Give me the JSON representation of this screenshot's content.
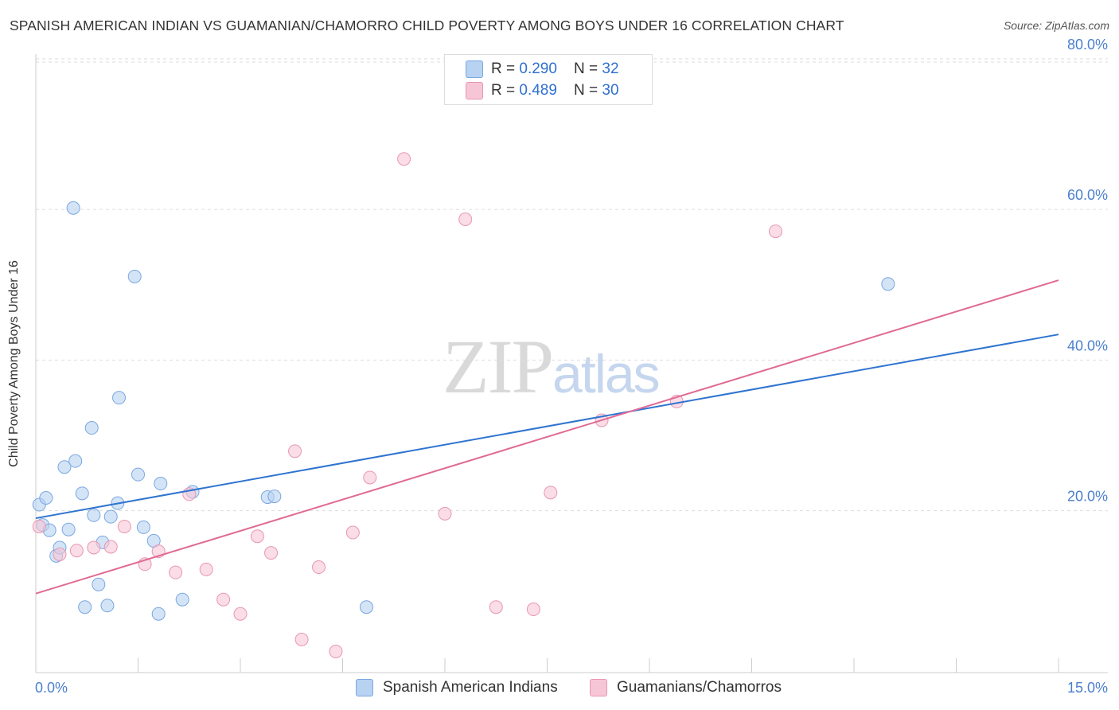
{
  "title": "SPANISH AMERICAN INDIAN VS GUAMANIAN/CHAMORRO CHILD POVERTY AMONG BOYS UNDER 16 CORRELATION CHART",
  "source": "Source: ZipAtlas.com",
  "watermark": {
    "zip": "ZIP",
    "atlas": "atlas"
  },
  "legend": {
    "series1": {
      "r_label": "R = ",
      "r_value": "0.290",
      "n_label": "N = ",
      "n_value": "32"
    },
    "series2": {
      "r_label": "R = ",
      "r_value": "0.489",
      "n_label": "N = ",
      "n_value": "30"
    }
  },
  "chart_data": {
    "type": "scatter",
    "title": "SPANISH AMERICAN INDIAN VS GUAMANIAN/CHAMORRO CHILD POVERTY AMONG BOYS UNDER 16 CORRELATION CHART",
    "xlabel": "",
    "ylabel": "Child Poverty Among Boys Under 16",
    "xlim": [
      0,
      15
    ],
    "ylim": [
      -1.5,
      82
    ],
    "x_tick_labels": [
      "0.0%",
      "15.0%"
    ],
    "y_ticks": [
      20,
      40,
      60,
      80
    ],
    "y_tick_labels": [
      "20.0%",
      "40.0%",
      "60.0%",
      "80.0%"
    ],
    "grid": true,
    "colors": {
      "series1_fill": "#b8d2f2",
      "series1_stroke": "#7aa7e0",
      "series1_line": "#2f74d0",
      "series2_fill": "#f7c6d6",
      "series2_stroke": "#e897b2",
      "series2_line": "#e06a94",
      "tick_label": "#4a7fd0",
      "grid": "#dddddd",
      "axis": "#cccccc"
    },
    "series": [
      {
        "name": "Spanish American Indians",
        "r": 0.29,
        "n": 32,
        "trend": {
          "x": [
            0,
            15
          ],
          "y": [
            19.0,
            43.4
          ]
        },
        "points": [
          {
            "x": 0.05,
            "y": 20.8
          },
          {
            "x": 0.15,
            "y": 21.7
          },
          {
            "x": 0.1,
            "y": 18.1
          },
          {
            "x": 0.2,
            "y": 17.4
          },
          {
            "x": 0.3,
            "y": 14.0
          },
          {
            "x": 0.35,
            "y": 15.1
          },
          {
            "x": 0.42,
            "y": 25.8
          },
          {
            "x": 0.48,
            "y": 17.5
          },
          {
            "x": 0.55,
            "y": 60.2
          },
          {
            "x": 0.58,
            "y": 26.6
          },
          {
            "x": 0.68,
            "y": 22.3
          },
          {
            "x": 0.72,
            "y": 7.2
          },
          {
            "x": 0.82,
            "y": 31.0
          },
          {
            "x": 0.85,
            "y": 19.4
          },
          {
            "x": 0.92,
            "y": 10.2
          },
          {
            "x": 0.98,
            "y": 15.8
          },
          {
            "x": 1.05,
            "y": 7.4
          },
          {
            "x": 1.1,
            "y": 19.2
          },
          {
            "x": 1.2,
            "y": 21.0
          },
          {
            "x": 1.22,
            "y": 35.0
          },
          {
            "x": 1.45,
            "y": 51.1
          },
          {
            "x": 1.5,
            "y": 24.8
          },
          {
            "x": 1.58,
            "y": 17.8
          },
          {
            "x": 1.73,
            "y": 16.0
          },
          {
            "x": 1.8,
            "y": 6.3
          },
          {
            "x": 1.83,
            "y": 23.6
          },
          {
            "x": 2.15,
            "y": 8.2
          },
          {
            "x": 2.3,
            "y": 22.5
          },
          {
            "x": 3.4,
            "y": 21.8
          },
          {
            "x": 3.5,
            "y": 21.9
          },
          {
            "x": 4.85,
            "y": 7.2
          },
          {
            "x": 12.5,
            "y": 50.1
          }
        ]
      },
      {
        "name": "Guamanians/Chamorros",
        "r": 0.489,
        "n": 30,
        "trend": {
          "x": [
            0,
            15
          ],
          "y": [
            9.0,
            50.6
          ]
        },
        "points": [
          {
            "x": 0.05,
            "y": 17.9
          },
          {
            "x": 0.35,
            "y": 14.2
          },
          {
            "x": 0.6,
            "y": 14.7
          },
          {
            "x": 0.85,
            "y": 15.1
          },
          {
            "x": 1.1,
            "y": 15.2
          },
          {
            "x": 1.3,
            "y": 17.9
          },
          {
            "x": 1.6,
            "y": 12.9
          },
          {
            "x": 1.8,
            "y": 14.6
          },
          {
            "x": 2.05,
            "y": 11.8
          },
          {
            "x": 2.25,
            "y": 22.2
          },
          {
            "x": 2.5,
            "y": 12.2
          },
          {
            "x": 2.75,
            "y": 8.2
          },
          {
            "x": 3.0,
            "y": 6.3
          },
          {
            "x": 3.25,
            "y": 16.6
          },
          {
            "x": 3.45,
            "y": 14.4
          },
          {
            "x": 3.8,
            "y": 27.9
          },
          {
            "x": 3.9,
            "y": 2.9
          },
          {
            "x": 4.15,
            "y": 12.5
          },
          {
            "x": 4.4,
            "y": 1.3
          },
          {
            "x": 4.65,
            "y": 17.1
          },
          {
            "x": 4.9,
            "y": 24.4
          },
          {
            "x": 5.4,
            "y": 66.7
          },
          {
            "x": 6.0,
            "y": 19.6
          },
          {
            "x": 6.3,
            "y": 58.7
          },
          {
            "x": 6.75,
            "y": 7.2
          },
          {
            "x": 7.3,
            "y": 6.9
          },
          {
            "x": 7.55,
            "y": 22.4
          },
          {
            "x": 8.3,
            "y": 32.0
          },
          {
            "x": 9.4,
            "y": 34.5
          },
          {
            "x": 10.85,
            "y": 57.1
          }
        ]
      }
    ]
  },
  "bottom_legend": {
    "series1_label": "Spanish American Indians",
    "series2_label": "Guamanians/Chamorros"
  }
}
